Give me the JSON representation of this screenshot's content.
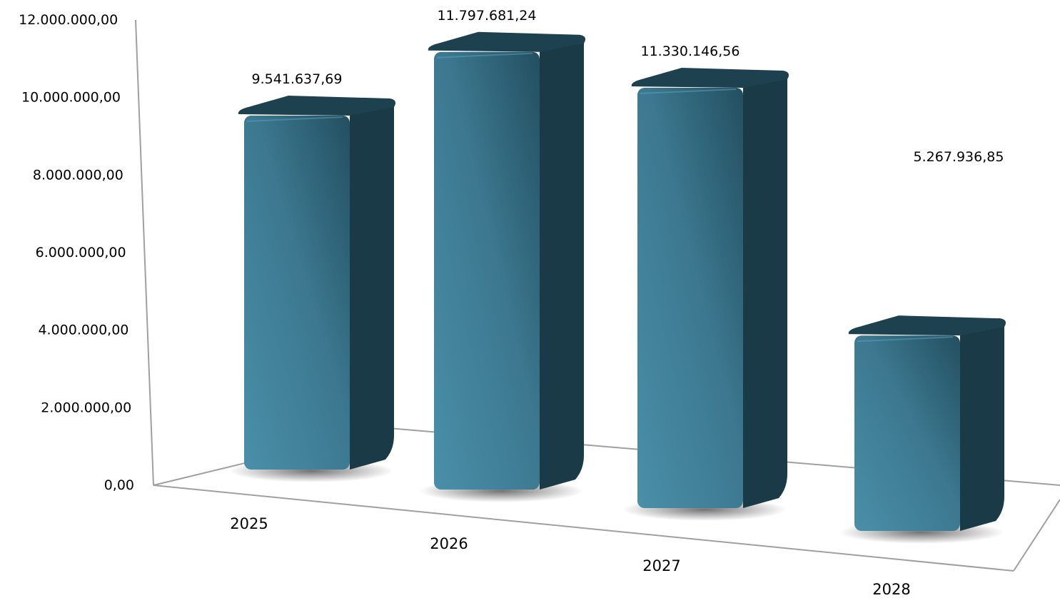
{
  "chart_data": {
    "type": "bar",
    "title": "",
    "xlabel": "",
    "ylabel": "",
    "ylim": [
      0,
      12000000
    ],
    "y_ticks": [
      {
        "value": 0,
        "label": "0,00"
      },
      {
        "value": 2000000,
        "label": "2.000.000,00"
      },
      {
        "value": 4000000,
        "label": "4.000.000,00"
      },
      {
        "value": 6000000,
        "label": "6.000.000,00"
      },
      {
        "value": 8000000,
        "label": "8.000.000,00"
      },
      {
        "value": 10000000,
        "label": "10.000.000,00"
      },
      {
        "value": 12000000,
        "label": "12.000.000,00"
      }
    ],
    "categories": [
      "2025",
      "2026",
      "2027",
      "2028"
    ],
    "values": [
      9541637.69,
      11797681.24,
      11330146.56,
      5267936.85
    ],
    "value_labels": [
      "9.541.637,69",
      "11.797.681,24",
      "11.330.146,56",
      "5.267.936,85"
    ],
    "style": "3d",
    "grid": false,
    "legend": "none",
    "colors": {
      "bar_front_light": "#4a8fa8",
      "bar_front_dark": "#234f60",
      "bar_side": "#1a3a47",
      "bar_top": "#1e4150",
      "axis": "#a0a0a0"
    }
  }
}
